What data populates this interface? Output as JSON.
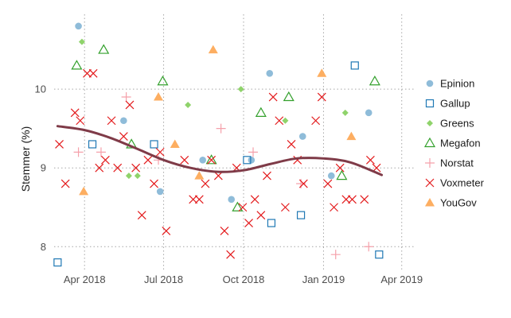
{
  "chart_data": {
    "type": "scatter",
    "title": "",
    "xlabel": "",
    "ylabel": "Stemmer (%)",
    "xlim": [
      "2018-02-25",
      "2019-04-15"
    ],
    "ylim": [
      7.7,
      10.95
    ],
    "grid": true,
    "legend_position": "right",
    "x_ticks": [
      {
        "date": "2018-04-01",
        "label": "Apr 2018"
      },
      {
        "date": "2018-07-01",
        "label": "Jul 2018"
      },
      {
        "date": "2018-10-01",
        "label": "Oct 2018"
      },
      {
        "date": "2019-01-01",
        "label": "Jan 2019"
      },
      {
        "date": "2019-04-01",
        "label": "Apr 2019"
      }
    ],
    "y_ticks": [
      {
        "value": 8,
        "label": "8"
      },
      {
        "value": 9,
        "label": "9"
      },
      {
        "value": 10,
        "label": "10"
      }
    ],
    "series": [
      {
        "name": "Epinion",
        "marker": "circle",
        "color": "#8fbcd9",
        "points": [
          [
            "2018-03-25",
            10.8
          ],
          [
            "2018-05-16",
            9.6
          ],
          [
            "2018-06-27",
            8.7
          ],
          [
            "2018-08-15",
            9.1
          ],
          [
            "2018-09-17",
            8.6
          ],
          [
            "2018-10-10",
            9.1
          ],
          [
            "2018-10-31",
            10.2
          ],
          [
            "2018-12-08",
            9.4
          ],
          [
            "2019-01-10",
            8.9
          ],
          [
            "2019-02-22",
            9.7
          ]
        ]
      },
      {
        "name": "Gallup",
        "marker": "square",
        "color": "#1f78b4",
        "points": [
          [
            "2018-03-01",
            7.8
          ],
          [
            "2018-04-10",
            9.3
          ],
          [
            "2018-06-20",
            9.3
          ],
          [
            "2018-10-05",
            9.1
          ],
          [
            "2018-11-02",
            8.3
          ],
          [
            "2018-12-06",
            8.4
          ],
          [
            "2019-02-06",
            10.3
          ],
          [
            "2019-03-06",
            7.9
          ]
        ]
      },
      {
        "name": "Greens",
        "marker": "diamond",
        "color": "#8fd36b",
        "points": [
          [
            "2018-03-29",
            10.6
          ],
          [
            "2018-05-22",
            8.9
          ],
          [
            "2018-06-01",
            8.9
          ],
          [
            "2018-07-29",
            9.8
          ],
          [
            "2018-09-28",
            10.0
          ],
          [
            "2018-11-18",
            9.6
          ],
          [
            "2019-01-26",
            9.7
          ]
        ]
      },
      {
        "name": "Megafon",
        "marker": "triangle",
        "color": "#33a02c",
        "points": [
          [
            "2018-03-23",
            10.3
          ],
          [
            "2018-04-23",
            10.5
          ],
          [
            "2018-05-25",
            9.3
          ],
          [
            "2018-06-30",
            10.1
          ],
          [
            "2018-08-25",
            9.1
          ],
          [
            "2018-09-24",
            8.5
          ],
          [
            "2018-10-21",
            9.7
          ],
          [
            "2018-11-22",
            9.9
          ],
          [
            "2019-01-22",
            8.9
          ],
          [
            "2019-03-01",
            10.1
          ]
        ]
      },
      {
        "name": "Norstat",
        "marker": "plus",
        "color": "#f5a0aa",
        "points": [
          [
            "2018-03-25",
            9.2
          ],
          [
            "2018-04-20",
            9.2
          ],
          [
            "2018-05-19",
            9.9
          ],
          [
            "2018-06-25",
            9.1
          ],
          [
            "2018-09-05",
            9.5
          ],
          [
            "2018-10-12",
            9.2
          ],
          [
            "2018-12-06",
            8.8
          ],
          [
            "2019-01-15",
            7.9
          ],
          [
            "2019-02-22",
            8.0
          ]
        ]
      },
      {
        "name": "Voxmeter",
        "marker": "x",
        "color": "#e31a1c",
        "points": [
          [
            "2018-03-03",
            9.3
          ],
          [
            "2018-03-10",
            8.8
          ],
          [
            "2018-03-21",
            9.7
          ],
          [
            "2018-03-27",
            9.6
          ],
          [
            "2018-04-04",
            10.2
          ],
          [
            "2018-04-11",
            10.2
          ],
          [
            "2018-04-18",
            9.0
          ],
          [
            "2018-04-25",
            9.1
          ],
          [
            "2018-05-02",
            9.6
          ],
          [
            "2018-05-09",
            9.0
          ],
          [
            "2018-05-16",
            9.4
          ],
          [
            "2018-05-23",
            9.8
          ],
          [
            "2018-05-30",
            9.0
          ],
          [
            "2018-06-06",
            8.4
          ],
          [
            "2018-06-13",
            9.1
          ],
          [
            "2018-06-20",
            8.8
          ],
          [
            "2018-06-27",
            9.2
          ],
          [
            "2018-07-04",
            8.2
          ],
          [
            "2018-07-25",
            9.1
          ],
          [
            "2018-08-04",
            8.6
          ],
          [
            "2018-08-11",
            8.6
          ],
          [
            "2018-08-18",
            8.8
          ],
          [
            "2018-08-25",
            9.1
          ],
          [
            "2018-09-02",
            8.9
          ],
          [
            "2018-09-09",
            8.2
          ],
          [
            "2018-09-16",
            7.9
          ],
          [
            "2018-09-23",
            9.0
          ],
          [
            "2018-09-30",
            8.5
          ],
          [
            "2018-10-07",
            8.3
          ],
          [
            "2018-10-14",
            8.6
          ],
          [
            "2018-10-21",
            8.4
          ],
          [
            "2018-10-28",
            8.9
          ],
          [
            "2018-11-04",
            9.9
          ],
          [
            "2018-11-11",
            9.6
          ],
          [
            "2018-11-18",
            8.5
          ],
          [
            "2018-11-25",
            9.3
          ],
          [
            "2018-12-02",
            9.1
          ],
          [
            "2018-12-09",
            8.8
          ],
          [
            "2018-12-23",
            9.6
          ],
          [
            "2018-12-30",
            9.9
          ],
          [
            "2019-01-06",
            8.8
          ],
          [
            "2019-01-13",
            8.5
          ],
          [
            "2019-01-20",
            9.0
          ],
          [
            "2019-01-27",
            8.6
          ],
          [
            "2019-02-03",
            8.6
          ],
          [
            "2019-02-17",
            8.6
          ],
          [
            "2019-02-24",
            9.1
          ],
          [
            "2019-03-03",
            9.0
          ]
        ]
      },
      {
        "name": "YouGov",
        "marker": "triangle-filled",
        "color": "#fdae61",
        "points": [
          [
            "2018-03-31",
            8.7
          ],
          [
            "2018-06-25",
            9.9
          ],
          [
            "2018-07-14",
            9.3
          ],
          [
            "2018-08-11",
            8.9
          ],
          [
            "2018-08-27",
            10.5
          ],
          [
            "2018-12-30",
            10.2
          ],
          [
            "2019-02-02",
            9.4
          ]
        ]
      }
    ],
    "trend": {
      "color": "#7f3b48",
      "points": [
        [
          "2018-03-01",
          9.53
        ],
        [
          "2018-04-01",
          9.48
        ],
        [
          "2018-05-01",
          9.38
        ],
        [
          "2018-06-01",
          9.24
        ],
        [
          "2018-07-01",
          9.1
        ],
        [
          "2018-08-01",
          9.0
        ],
        [
          "2018-09-01",
          8.95
        ],
        [
          "2018-10-01",
          8.97
        ],
        [
          "2018-11-01",
          9.05
        ],
        [
          "2018-12-01",
          9.12
        ],
        [
          "2019-01-01",
          9.12
        ],
        [
          "2019-02-01",
          9.07
        ],
        [
          "2019-03-09",
          8.91
        ]
      ]
    }
  }
}
